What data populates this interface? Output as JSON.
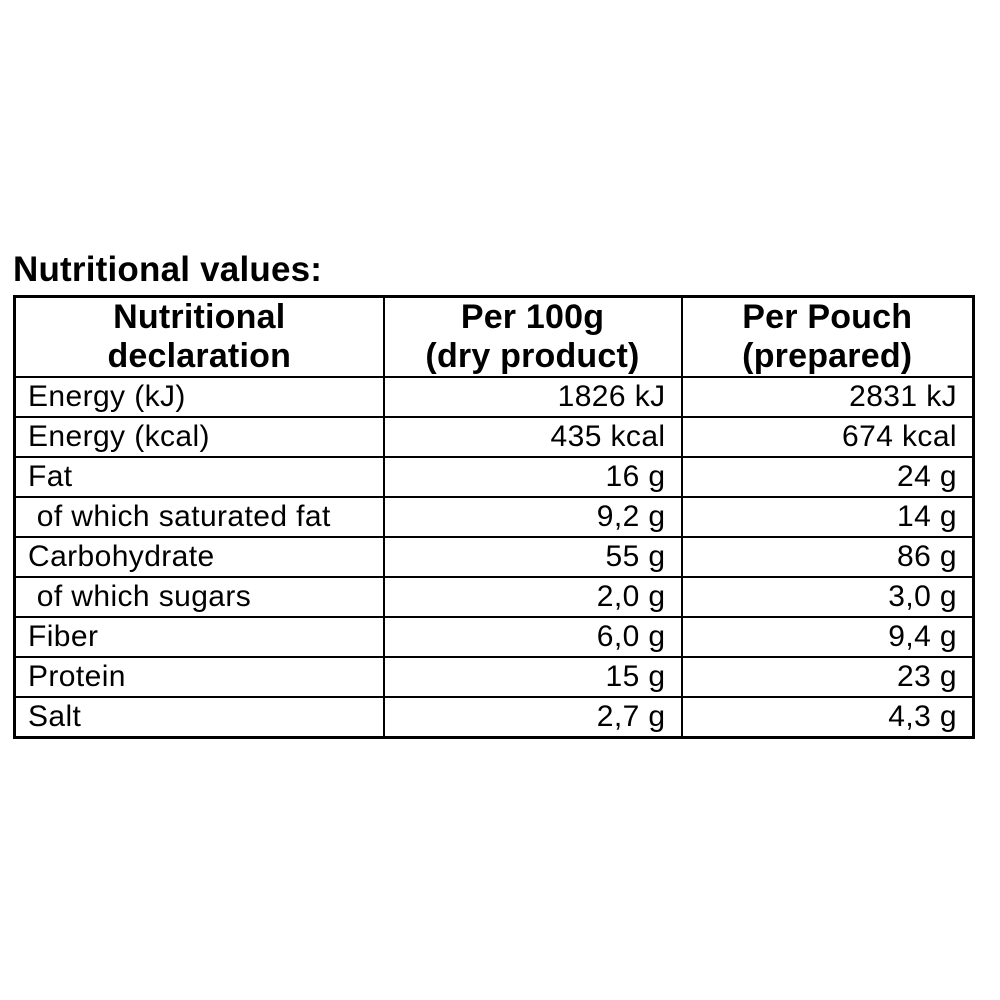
{
  "page": {
    "background_color": "#ffffff",
    "text_color": "#000000",
    "border_color": "#000000"
  },
  "title": "Nutritional values:",
  "table": {
    "headers": [
      {
        "label": "Nutritional\ndeclaration"
      },
      {
        "label": "Per 100g\n(dry product)"
      },
      {
        "label": "Per Pouch\n(prepared)"
      }
    ],
    "rows": [
      {
        "label": "Energy (kJ)",
        "per_100g": "1826 kJ",
        "per_pouch": "2831 kJ"
      },
      {
        "label": "Energy (kcal)",
        "per_100g": "435 kcal",
        "per_pouch": "674 kcal"
      },
      {
        "label": "Fat",
        "per_100g": "16 g",
        "per_pouch": "24 g"
      },
      {
        "label": " of which saturated fat",
        "per_100g": "9,2 g",
        "per_pouch": "14 g"
      },
      {
        "label": "Carbohydrate",
        "per_100g": "55 g",
        "per_pouch": "86 g"
      },
      {
        "label": " of which sugars",
        "per_100g": "2,0 g",
        "per_pouch": "3,0 g"
      },
      {
        "label": "Fiber",
        "per_100g": "6,0 g",
        "per_pouch": "9,4 g"
      },
      {
        "label": "Protein",
        "per_100g": "15 g",
        "per_pouch": "23 g"
      },
      {
        "label": "Salt",
        "per_100g": "2,7 g",
        "per_pouch": "4,3 g"
      }
    ]
  }
}
